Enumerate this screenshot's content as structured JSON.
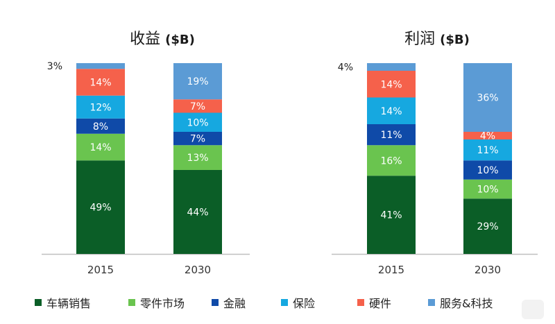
{
  "colors": {
    "车辆销售": "#0b5e27",
    "零件市场": "#6ac44f",
    "金融": "#0f4aa8",
    "保险": "#16a8e0",
    "硬件": "#f5614b",
    "服务&科技": "#5b9bd5"
  },
  "chart_data": [
    {
      "type": "bar",
      "stacked": true,
      "title": "收益",
      "title_unit": "($B)",
      "categories": [
        "2015",
        "2030"
      ],
      "series": [
        {
          "name": "车辆销售",
          "values": [
            49,
            44
          ],
          "labels": [
            "49%",
            "44%"
          ]
        },
        {
          "name": "零件市场",
          "values": [
            14,
            13
          ],
          "labels": [
            "14%",
            "13%"
          ]
        },
        {
          "name": "金融",
          "values": [
            8,
            7
          ],
          "labels": [
            "8%",
            "7%"
          ]
        },
        {
          "name": "保险",
          "values": [
            12,
            10
          ],
          "labels": [
            "12%",
            "10%"
          ]
        },
        {
          "name": "硬件",
          "values": [
            14,
            7
          ],
          "labels": [
            "14%",
            "7%"
          ]
        },
        {
          "name": "服务&科技",
          "values": [
            3,
            19
          ],
          "labels": [
            "3%",
            "19%"
          ]
        }
      ],
      "ylim": [
        0,
        100
      ],
      "grid": false,
      "legend": "bottom"
    },
    {
      "type": "bar",
      "stacked": true,
      "title": "利润",
      "title_unit": "($B)",
      "categories": [
        "2015",
        "2030"
      ],
      "series": [
        {
          "name": "车辆销售",
          "values": [
            41,
            29
          ],
          "labels": [
            "41%",
            "29%"
          ]
        },
        {
          "name": "零件市场",
          "values": [
            16,
            10
          ],
          "labels": [
            "16%",
            "10%"
          ]
        },
        {
          "name": "金融",
          "values": [
            11,
            10
          ],
          "labels": [
            "11%",
            "10%"
          ]
        },
        {
          "name": "保险",
          "values": [
            14,
            11
          ],
          "labels": [
            "14%",
            "11%"
          ]
        },
        {
          "name": "硬件",
          "values": [
            14,
            4
          ],
          "labels": [
            "14%",
            "4%"
          ]
        },
        {
          "name": "服务&科技",
          "values": [
            4,
            36
          ],
          "labels": [
            "4%",
            "36%"
          ]
        }
      ],
      "ylim": [
        0,
        100
      ],
      "grid": false,
      "legend": "bottom"
    }
  ],
  "legend": [
    {
      "label": "车辆销售",
      "color": "#0b5e27"
    },
    {
      "label": "零件市场",
      "color": "#6ac44f"
    },
    {
      "label": "金融",
      "color": "#0f4aa8"
    },
    {
      "label": "保险",
      "color": "#16a8e0"
    },
    {
      "label": "硬件",
      "color": "#f5614b"
    },
    {
      "label": "服务&科技",
      "color": "#5b9bd5"
    }
  ]
}
